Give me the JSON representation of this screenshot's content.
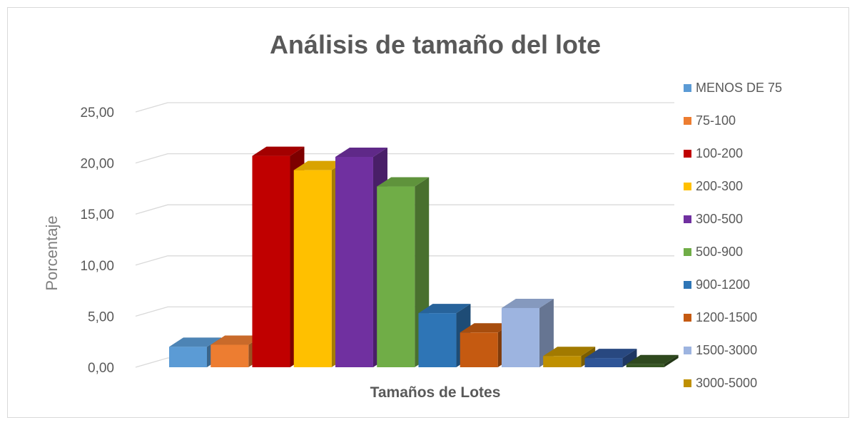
{
  "chart_data": {
    "type": "bar",
    "title": "Análisis de tamaño del lote",
    "xlabel": "Tamaños de Lotes",
    "ylabel": "Porcentaje",
    "ylim": [
      0,
      25
    ],
    "y_ticks": [
      "0,00",
      "5,00",
      "10,00",
      "15,00",
      "20,00",
      "25,00"
    ],
    "grid": true,
    "legend_position": "right",
    "series": [
      {
        "name": "MENOS DE 75",
        "value": 2.0,
        "color": "#5b9bd5"
      },
      {
        "name": "75-100",
        "value": 2.2,
        "color": "#ed7d31"
      },
      {
        "name": "100-200",
        "value": 20.7,
        "color": "#c00000"
      },
      {
        "name": "200-300",
        "value": 19.3,
        "color": "#ffc000"
      },
      {
        "name": "300-500",
        "value": 20.6,
        "color": "#7030a0"
      },
      {
        "name": "500-900",
        "value": 17.7,
        "color": "#70ad47"
      },
      {
        "name": "900-1200",
        "value": 5.3,
        "color": "#2e75b6"
      },
      {
        "name": "1200-1500",
        "value": 3.4,
        "color": "#c55a11"
      },
      {
        "name": "1500-3000",
        "value": 5.8,
        "color": "#9db4e0"
      },
      {
        "name": "3000-5000",
        "value": 1.1,
        "color": "#bf9000"
      },
      {
        "name": "",
        "value": 0.9,
        "color": "#2f5597"
      },
      {
        "name": "",
        "value": 0.3,
        "color": "#375623"
      }
    ]
  }
}
